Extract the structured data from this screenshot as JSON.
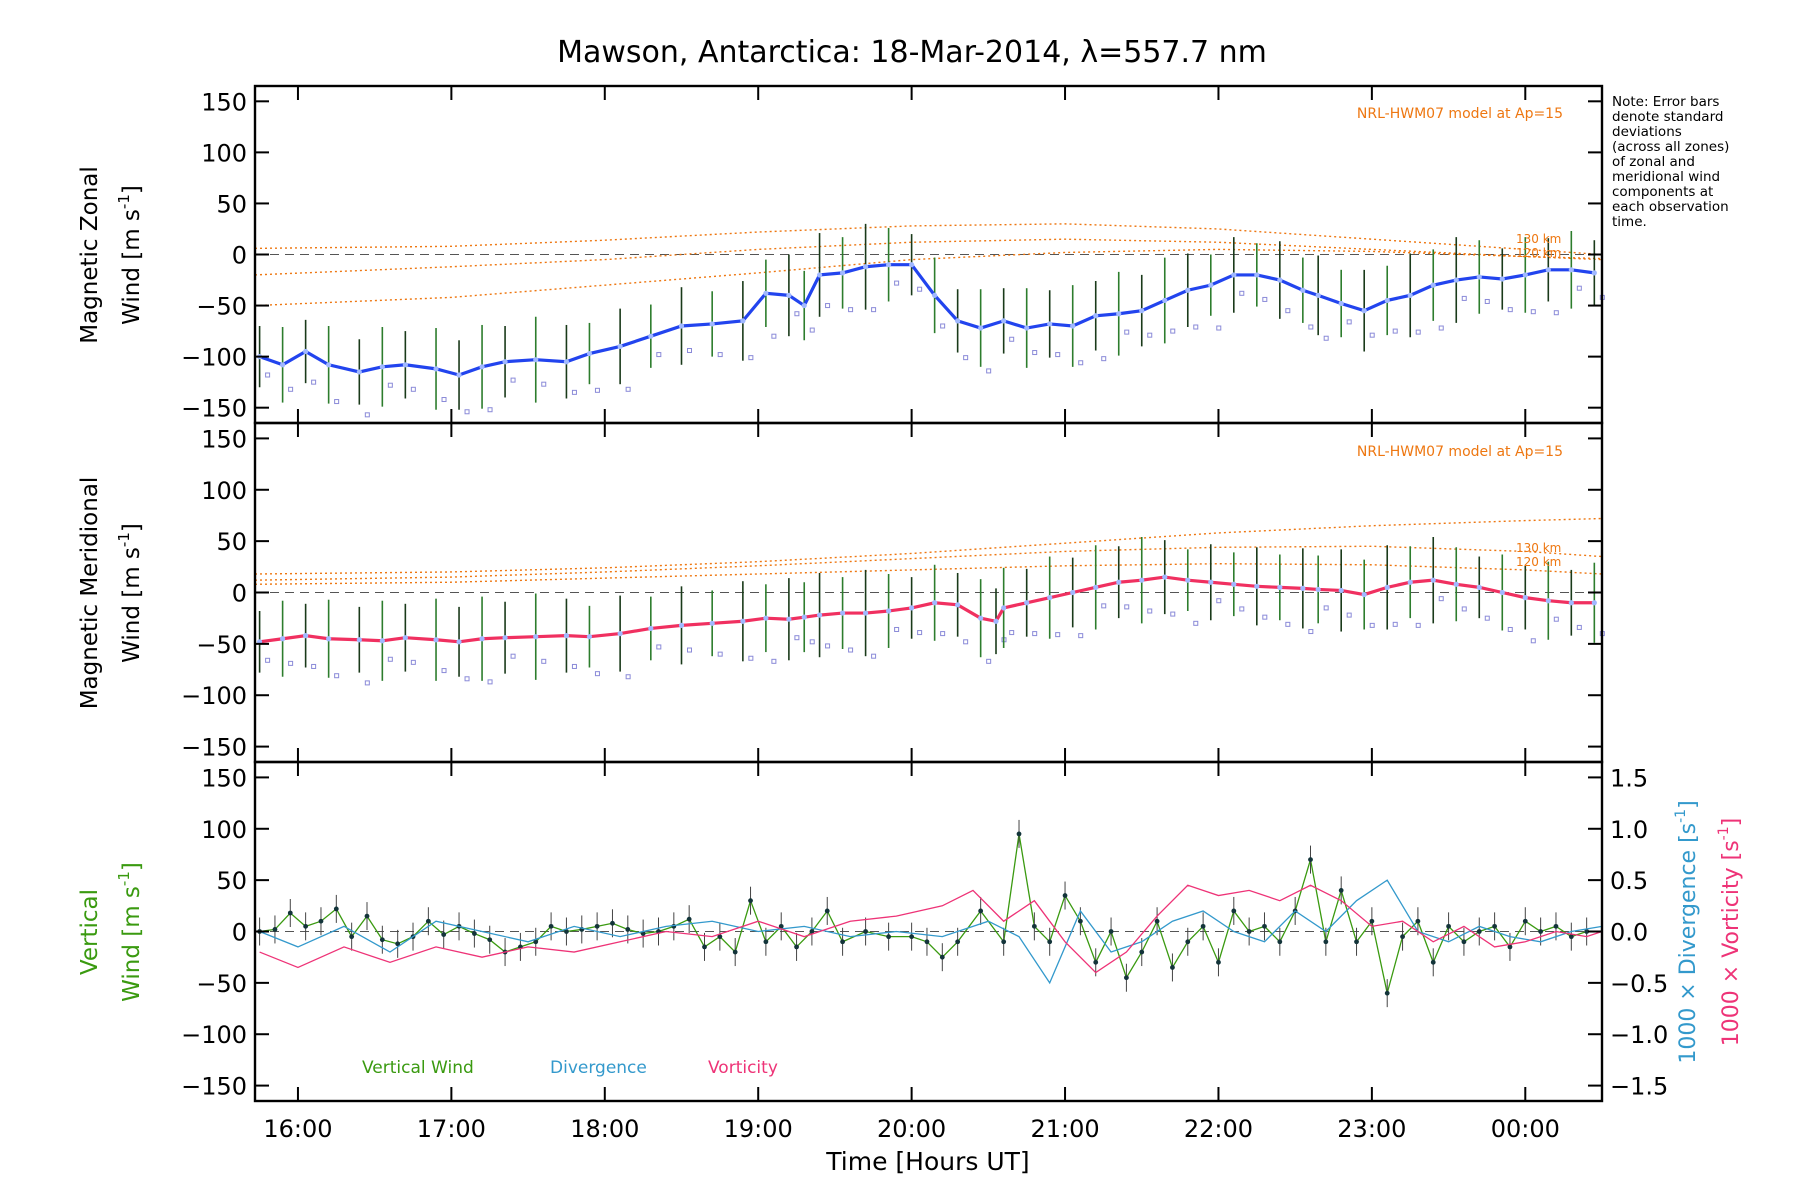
{
  "title": "Mawson, Antarctica: 18-Mar-2014, λ=557.7 nm",
  "note": [
    "Note: Error bars",
    "denote standard",
    "deviations",
    "(across all zones)",
    "of zonal and",
    "meridional wind",
    "components at",
    "each observation",
    "time."
  ],
  "colors": {
    "zonal": "#2244ee",
    "meridional": "#f03060",
    "vertical": "#3a9a10",
    "divergence": "#3399cc",
    "vorticity": "#ee3377",
    "model": "#ee7711",
    "errorbar_dark": "#1a3a1a",
    "zone_marker": "#8a8ad8"
  },
  "chart_data": [
    {
      "type": "line",
      "ylabel_line1": "Magnetic Zonal",
      "ylabel_line2_text": "Wind [m s",
      "ylabel_line2_sup": "-1",
      "ylabel_line2_end": "]",
      "model_label": "NRL-HWM07 model at Ap=15",
      "model_alt_labels": [
        "130 km",
        "120 km"
      ],
      "xlim": [
        15.72,
        24.5
      ],
      "ylim": [
        -165,
        165
      ],
      "yticks": [
        -150,
        -100,
        -50,
        0,
        50,
        100,
        150
      ],
      "series": [
        {
          "color_key": "zonal",
          "x": [
            15.75,
            15.9,
            16.05,
            16.2,
            16.4,
            16.55,
            16.7,
            16.9,
            17.05,
            17.2,
            17.35,
            17.55,
            17.75,
            17.9,
            18.1,
            18.3,
            18.5,
            18.7,
            18.9,
            19.05,
            19.2,
            19.3,
            19.4,
            19.55,
            19.7,
            19.85,
            20.0,
            20.15,
            20.3,
            20.45,
            20.6,
            20.75,
            20.9,
            21.05,
            21.2,
            21.35,
            21.5,
            21.65,
            21.8,
            21.95,
            22.1,
            22.25,
            22.4,
            22.55,
            22.65,
            22.8,
            22.95,
            23.1,
            23.25,
            23.4,
            23.55,
            23.7,
            23.85,
            24.0,
            24.15,
            24.3,
            24.45
          ],
          "y": [
            -100,
            -108,
            -95,
            -108,
            -115,
            -110,
            -108,
            -112,
            -118,
            -110,
            -105,
            -103,
            -105,
            -97,
            -90,
            -80,
            -70,
            -68,
            -65,
            -38,
            -40,
            -50,
            -20,
            -18,
            -12,
            -10,
            -10,
            -40,
            -65,
            -72,
            -65,
            -72,
            -68,
            -70,
            -60,
            -58,
            -55,
            -45,
            -35,
            -30,
            -20,
            -20,
            -25,
            -35,
            -40,
            -48,
            -55,
            -45,
            -40,
            -30,
            -25,
            -22,
            -24,
            -20,
            -15,
            -15,
            -18
          ]
        }
      ],
      "models": [
        {
          "x": [
            15.72,
            17,
            18,
            19,
            20,
            21,
            22,
            23,
            24,
            24.5
          ],
          "y": [
            6,
            8,
            14,
            22,
            28,
            30,
            25,
            15,
            5,
            0
          ]
        },
        {
          "x": [
            15.72,
            17,
            18,
            19,
            20,
            21,
            22,
            23,
            24,
            24.5
          ],
          "y": [
            -20,
            -12,
            -5,
            5,
            12,
            15,
            12,
            5,
            -2,
            -5
          ]
        },
        {
          "x": [
            15.72,
            17,
            18,
            19,
            20,
            21,
            22,
            23,
            24,
            24.5
          ],
          "y": [
            -50,
            -42,
            -30,
            -18,
            -5,
            2,
            5,
            3,
            -2,
            -4
          ]
        }
      ]
    },
    {
      "type": "line",
      "ylabel_line1": "Magnetic Meridional",
      "ylabel_line2_text": "Wind [m s",
      "ylabel_line2_sup": "-1",
      "ylabel_line2_end": "]",
      "model_label": "NRL-HWM07 model at Ap=15",
      "model_alt_labels": [
        "130 km",
        "120 km"
      ],
      "xlim": [
        15.72,
        24.5
      ],
      "ylim": [
        -165,
        165
      ],
      "yticks": [
        -150,
        -100,
        -50,
        0,
        50,
        100,
        150
      ],
      "series": [
        {
          "color_key": "meridional",
          "x": [
            15.75,
            15.9,
            16.05,
            16.2,
            16.4,
            16.55,
            16.7,
            16.9,
            17.05,
            17.2,
            17.35,
            17.55,
            17.75,
            17.9,
            18.1,
            18.3,
            18.5,
            18.7,
            18.9,
            19.05,
            19.2,
            19.3,
            19.4,
            19.55,
            19.7,
            19.85,
            20.0,
            20.15,
            20.3,
            20.45,
            20.55,
            20.6,
            20.75,
            20.9,
            21.05,
            21.2,
            21.35,
            21.5,
            21.65,
            21.8,
            21.95,
            22.1,
            22.25,
            22.4,
            22.55,
            22.65,
            22.8,
            22.95,
            23.1,
            23.25,
            23.4,
            23.55,
            23.7,
            23.85,
            24.0,
            24.15,
            24.3,
            24.45
          ],
          "y": [
            -48,
            -45,
            -42,
            -45,
            -46,
            -47,
            -44,
            -46,
            -48,
            -45,
            -44,
            -43,
            -42,
            -43,
            -40,
            -35,
            -32,
            -30,
            -28,
            -25,
            -26,
            -24,
            -22,
            -20,
            -20,
            -18,
            -15,
            -10,
            -12,
            -25,
            -28,
            -15,
            -10,
            -5,
            0,
            5,
            10,
            12,
            15,
            12,
            10,
            8,
            6,
            5,
            4,
            3,
            2,
            -2,
            5,
            10,
            12,
            8,
            5,
            0,
            -5,
            -8,
            -10,
            -10
          ]
        }
      ],
      "models": [
        {
          "x": [
            15.72,
            17,
            18,
            19,
            20,
            21,
            22,
            23,
            24,
            24.5
          ],
          "y": [
            18,
            20,
            24,
            30,
            38,
            48,
            58,
            65,
            70,
            72
          ]
        },
        {
          "x": [
            15.72,
            17,
            18,
            19,
            20,
            21,
            22,
            23,
            24,
            24.5
          ],
          "y": [
            12,
            15,
            20,
            26,
            33,
            40,
            44,
            45,
            40,
            35
          ]
        },
        {
          "x": [
            15.72,
            17,
            18,
            19,
            20,
            21,
            22,
            23,
            24,
            24.5
          ],
          "y": [
            8,
            10,
            14,
            18,
            22,
            26,
            28,
            27,
            22,
            18
          ]
        }
      ]
    },
    {
      "type": "line",
      "ylabel_line1": "Vertical",
      "ylabel_line2_text": "Wind [m s",
      "ylabel_line2_sup": "-1",
      "ylabel_line2_end": "]",
      "y2label_div_text": "1000 × Divergence [s",
      "y2label_vort_text": "1000 × Vorticity [s",
      "y2label_sup": "-1",
      "y2label_end": "]",
      "xlim": [
        15.72,
        24.5
      ],
      "ylim": [
        -165,
        165
      ],
      "yticks": [
        -150,
        -100,
        -50,
        0,
        50,
        100,
        150
      ],
      "y2lim": [
        -1.65,
        1.65
      ],
      "y2ticks": [
        -1.5,
        -1.0,
        -0.5,
        0.0,
        0.5,
        1.0,
        1.5
      ],
      "y2ticklabels": [
        "−1.5",
        "−1.0",
        "−0.5",
        "0.0",
        "0.5",
        "1.0",
        "1.5"
      ],
      "xticks": [
        16,
        17,
        18,
        19,
        20,
        21,
        22,
        23,
        24
      ],
      "xticklabels": [
        "16:00",
        "17:00",
        "18:00",
        "19:00",
        "20:00",
        "21:00",
        "22:00",
        "23:00",
        "00:00"
      ],
      "xlabel": "Time [Hours UT]",
      "legend": [
        "Vertical Wind",
        "Divergence",
        "Vorticity"
      ],
      "series": [
        {
          "name": "Vertical Wind",
          "color_key": "vertical",
          "x": [
            15.75,
            15.85,
            15.95,
            16.05,
            16.15,
            16.25,
            16.35,
            16.45,
            16.55,
            16.65,
            16.75,
            16.85,
            16.95,
            17.05,
            17.15,
            17.25,
            17.35,
            17.45,
            17.55,
            17.65,
            17.75,
            17.85,
            17.95,
            18.05,
            18.15,
            18.25,
            18.35,
            18.45,
            18.55,
            18.65,
            18.75,
            18.85,
            18.95,
            19.05,
            19.15,
            19.25,
            19.35,
            19.45,
            19.55,
            19.7,
            19.85,
            20.0,
            20.1,
            20.2,
            20.3,
            20.45,
            20.6,
            20.7,
            20.8,
            20.9,
            21.0,
            21.1,
            21.2,
            21.3,
            21.4,
            21.5,
            21.6,
            21.7,
            21.8,
            21.9,
            22.0,
            22.1,
            22.2,
            22.3,
            22.4,
            22.5,
            22.6,
            22.7,
            22.8,
            22.9,
            23.0,
            23.1,
            23.2,
            23.3,
            23.4,
            23.5,
            23.6,
            23.7,
            23.8,
            23.9,
            24.0,
            24.1,
            24.2,
            24.3,
            24.4
          ],
          "y": [
            0,
            2,
            18,
            5,
            10,
            22,
            -5,
            15,
            -8,
            -12,
            -5,
            10,
            -3,
            5,
            -2,
            -8,
            -20,
            -15,
            -10,
            5,
            0,
            2,
            5,
            8,
            2,
            -2,
            0,
            5,
            12,
            -15,
            -5,
            -20,
            30,
            -10,
            5,
            -15,
            0,
            20,
            -10,
            0,
            -5,
            -5,
            -10,
            -25,
            -10,
            20,
            -10,
            95,
            5,
            -10,
            35,
            10,
            -30,
            0,
            -45,
            -20,
            10,
            -35,
            -10,
            5,
            -30,
            20,
            0,
            5,
            -10,
            20,
            70,
            -10,
            40,
            -10,
            10,
            -60,
            -5,
            10,
            -30,
            5,
            -10,
            0,
            5,
            -15,
            10,
            0,
            5,
            -5,
            0
          ]
        },
        {
          "name": "Divergence",
          "color_key": "divergence",
          "x": [
            15.75,
            16.0,
            16.3,
            16.6,
            16.9,
            17.2,
            17.5,
            17.8,
            18.1,
            18.4,
            18.7,
            19.0,
            19.3,
            19.6,
            19.9,
            20.2,
            20.5,
            20.7,
            20.9,
            21.1,
            21.3,
            21.5,
            21.7,
            21.9,
            22.1,
            22.3,
            22.5,
            22.7,
            22.9,
            23.1,
            23.3,
            23.5,
            23.7,
            23.9,
            24.1,
            24.3,
            24.5
          ],
          "y": [
            0.0,
            -0.15,
            0.05,
            -0.2,
            0.1,
            0.0,
            -0.1,
            0.05,
            -0.05,
            0.05,
            0.1,
            0.0,
            0.05,
            -0.05,
            0.0,
            -0.05,
            0.1,
            -0.05,
            -0.5,
            0.2,
            -0.2,
            -0.1,
            0.1,
            0.2,
            0.0,
            -0.1,
            0.2,
            0.0,
            0.3,
            0.5,
            0.0,
            -0.1,
            0.05,
            -0.05,
            -0.1,
            0.0,
            0.05
          ]
        },
        {
          "name": "Vorticity",
          "color_key": "vorticity",
          "x": [
            15.75,
            16.0,
            16.3,
            16.6,
            16.9,
            17.2,
            17.5,
            17.8,
            18.1,
            18.4,
            18.7,
            19.0,
            19.3,
            19.6,
            19.9,
            20.2,
            20.4,
            20.6,
            20.8,
            21.0,
            21.2,
            21.4,
            21.6,
            21.8,
            22.0,
            22.2,
            22.4,
            22.6,
            22.8,
            23.0,
            23.2,
            23.4,
            23.6,
            23.8,
            24.0,
            24.2,
            24.4,
            24.5
          ],
          "y": [
            -0.2,
            -0.35,
            -0.15,
            -0.3,
            -0.15,
            -0.25,
            -0.15,
            -0.2,
            -0.1,
            0.0,
            -0.05,
            0.1,
            -0.05,
            0.1,
            0.15,
            0.25,
            0.4,
            0.1,
            0.3,
            -0.1,
            -0.4,
            -0.2,
            0.15,
            0.45,
            0.35,
            0.4,
            0.3,
            0.45,
            0.3,
            0.05,
            0.1,
            -0.1,
            0.05,
            -0.15,
            -0.1,
            0.0,
            -0.05,
            0.0
          ]
        }
      ]
    }
  ]
}
